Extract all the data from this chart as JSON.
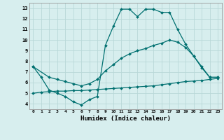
{
  "xlabel": "Humidex (Indice chaleur)",
  "ylabel": "",
  "background_color": "#d7eeee",
  "grid_color": "#b8d8d8",
  "line_color": "#007070",
  "xlim": [
    -0.5,
    23.5
  ],
  "ylim": [
    3.5,
    13.5
  ],
  "xticks": [
    0,
    1,
    2,
    3,
    4,
    5,
    6,
    7,
    8,
    9,
    10,
    11,
    12,
    13,
    14,
    15,
    16,
    17,
    18,
    19,
    20,
    21,
    22,
    23
  ],
  "yticks": [
    4,
    5,
    6,
    7,
    8,
    9,
    10,
    11,
    12,
    13
  ],
  "line1_x": [
    0,
    1,
    2,
    3,
    4,
    5,
    6,
    7,
    8,
    9,
    10,
    11,
    12,
    13,
    14,
    15,
    16,
    17,
    18,
    19,
    20,
    21,
    22,
    23
  ],
  "line1_y": [
    7.5,
    6.5,
    5.3,
    5.0,
    4.7,
    4.2,
    3.9,
    4.4,
    4.7,
    9.5,
    11.3,
    12.9,
    12.9,
    12.2,
    12.9,
    12.9,
    12.6,
    12.6,
    11.0,
    9.6,
    8.5,
    7.4,
    6.5,
    6.5
  ],
  "line2_x": [
    0,
    2,
    3,
    4,
    5,
    6,
    7,
    8,
    9,
    10,
    11,
    12,
    13,
    14,
    15,
    16,
    17,
    18,
    19,
    20,
    21,
    22,
    23
  ],
  "line2_y": [
    7.5,
    6.5,
    6.3,
    6.1,
    5.9,
    5.7,
    5.9,
    6.3,
    7.1,
    7.7,
    8.3,
    8.7,
    9.0,
    9.2,
    9.5,
    9.7,
    10.0,
    9.8,
    9.3,
    8.5,
    7.5,
    6.5,
    6.5
  ],
  "line3_x": [
    0,
    1,
    2,
    3,
    4,
    5,
    6,
    7,
    8,
    9,
    10,
    11,
    12,
    13,
    14,
    15,
    16,
    17,
    18,
    19,
    20,
    21,
    22,
    23
  ],
  "line3_y": [
    5.0,
    5.1,
    5.15,
    5.2,
    5.2,
    5.25,
    5.25,
    5.3,
    5.35,
    5.4,
    5.45,
    5.5,
    5.55,
    5.6,
    5.65,
    5.7,
    5.8,
    5.9,
    6.0,
    6.1,
    6.15,
    6.2,
    6.3,
    6.4
  ]
}
